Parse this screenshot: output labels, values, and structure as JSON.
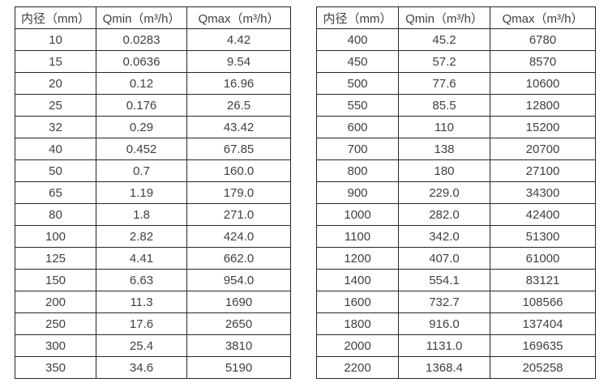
{
  "page": {
    "background_color": "#ffffff",
    "border_color": "#262626",
    "text_color": "#404040"
  },
  "tables": [
    {
      "name": "flow-rate-table-small-diameters",
      "headers": [
        "内径（mm）",
        "Qmin（m³/h）",
        "Qmax（m³/h）"
      ],
      "rows": [
        [
          "10",
          "0.0283",
          "4.42"
        ],
        [
          "15",
          "0.0636",
          "9.54"
        ],
        [
          "20",
          "0.12",
          "16.96"
        ],
        [
          "25",
          "0.176",
          "26.5"
        ],
        [
          "32",
          "0.29",
          "43.42"
        ],
        [
          "40",
          "0.452",
          "67.85"
        ],
        [
          "50",
          "0.7",
          "160.0"
        ],
        [
          "65",
          "1.19",
          "179.0"
        ],
        [
          "80",
          "1.8",
          "271.0"
        ],
        [
          "100",
          "2.82",
          "424.0"
        ],
        [
          "125",
          "4.41",
          "662.0"
        ],
        [
          "150",
          "6.63",
          "954.0"
        ],
        [
          "200",
          "11.3",
          "1690"
        ],
        [
          "250",
          "17.6",
          "2650"
        ],
        [
          "300",
          "25.4",
          "3810"
        ],
        [
          "350",
          "34.6",
          "5190"
        ]
      ]
    },
    {
      "name": "flow-rate-table-large-diameters",
      "headers": [
        "内径（mm）",
        "Qmin（m³/h）",
        "Qmax（m³/h）"
      ],
      "rows": [
        [
          "400",
          "45.2",
          "6780"
        ],
        [
          "450",
          "57.2",
          "8570"
        ],
        [
          "500",
          "77.6",
          "10600"
        ],
        [
          "550",
          "85.5",
          "12800"
        ],
        [
          "600",
          "110",
          "15200"
        ],
        [
          "700",
          "138",
          "20700"
        ],
        [
          "800",
          "180",
          "27100"
        ],
        [
          "900",
          "229.0",
          "34300"
        ],
        [
          "1000",
          "282.0",
          "42400"
        ],
        [
          "1100",
          "342.0",
          "51300"
        ],
        [
          "1200",
          "407.0",
          "61000"
        ],
        [
          "1400",
          "554.1",
          "83121"
        ],
        [
          "1600",
          "732.7",
          "108566"
        ],
        [
          "1800",
          "916.0",
          "137404"
        ],
        [
          "2000",
          "1131.0",
          "169635"
        ],
        [
          "2200",
          "1368.4",
          "205258"
        ]
      ]
    }
  ]
}
